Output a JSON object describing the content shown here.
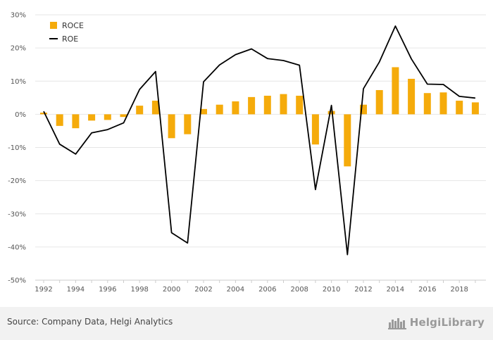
{
  "chart_data": {
    "type": "bar+line",
    "categories": [
      "1992",
      "1993",
      "1994",
      "1995",
      "1996",
      "1997",
      "1998",
      "1999",
      "2000",
      "2001",
      "2002",
      "2003",
      "2004",
      "2005",
      "2006",
      "2007",
      "2008",
      "2009",
      "2010",
      "2011",
      "2012",
      "2013",
      "2014",
      "2015",
      "2016",
      "2017",
      "2018",
      "2019"
    ],
    "x_tick_labels": [
      "1992",
      "1994",
      "1996",
      "1998",
      "2000",
      "2002",
      "2004",
      "2006",
      "2008",
      "2010",
      "2012",
      "2014",
      "2016",
      "2018"
    ],
    "y_ticks": [
      30,
      20,
      10,
      0,
      -10,
      -20,
      -30,
      -40,
      -50
    ],
    "y_tick_labels": [
      "30%",
      "20%",
      "10%",
      "0%",
      "-10%",
      "-20%",
      "-30%",
      "-40%",
      "-50%"
    ],
    "ylim": [
      -50,
      30
    ],
    "grid": true,
    "legend_position": "top-left",
    "series": [
      {
        "name": "ROCE",
        "type": "bar",
        "color": "#f5ab0b",
        "values": [
          0.5,
          -3.5,
          -4.2,
          -1.9,
          -1.7,
          -0.8,
          2.6,
          4.1,
          -7.2,
          -6.0,
          1.6,
          2.9,
          3.9,
          5.2,
          5.6,
          6.1,
          5.6,
          -9.1,
          1.0,
          -15.7,
          2.9,
          7.3,
          14.2,
          10.7,
          6.4,
          6.6,
          4.1,
          3.6
        ]
      },
      {
        "name": "ROE",
        "type": "line",
        "color": "#000000",
        "values": [
          0.9,
          -9.0,
          -12.0,
          -5.6,
          -4.6,
          -2.6,
          7.5,
          12.9,
          -35.7,
          -38.8,
          9.8,
          14.9,
          18.0,
          19.7,
          16.8,
          16.2,
          14.8,
          -22.7,
          2.7,
          -42.3,
          7.7,
          15.8,
          26.6,
          16.7,
          9.1,
          9.0,
          5.4,
          4.9
        ]
      }
    ]
  },
  "footer": {
    "source": "Source: Company Data, Helgi Analytics",
    "logo_text": "HelgiLibrary"
  }
}
